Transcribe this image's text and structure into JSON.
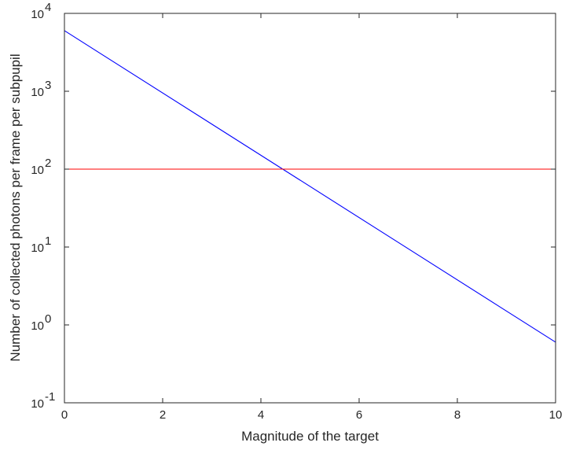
{
  "chart_data": {
    "type": "line",
    "title": "",
    "xlabel": "Magnitude of the target",
    "ylabel": "Number of collected photons per frame per subpupil",
    "xlim": [
      0,
      10
    ],
    "ylim": [
      0.1,
      10000
    ],
    "yscale": "log",
    "grid": false,
    "x_ticks": [
      0,
      2,
      4,
      6,
      8,
      10
    ],
    "y_ticks": [
      0.1,
      1,
      10,
      100,
      1000,
      10000
    ],
    "y_tick_labels": [
      {
        "base": "10",
        "exp": "-1"
      },
      {
        "base": "10",
        "exp": "0"
      },
      {
        "base": "10",
        "exp": "1"
      },
      {
        "base": "10",
        "exp": "2"
      },
      {
        "base": "10",
        "exp": "3"
      },
      {
        "base": "10",
        "exp": "4"
      }
    ],
    "series": [
      {
        "color": "#0000ff",
        "x": [
          0,
          10
        ],
        "y": [
          6000,
          0.6
        ]
      },
      {
        "color": "#ff0000",
        "x": [
          0,
          10
        ],
        "y": [
          100,
          100
        ]
      }
    ]
  }
}
